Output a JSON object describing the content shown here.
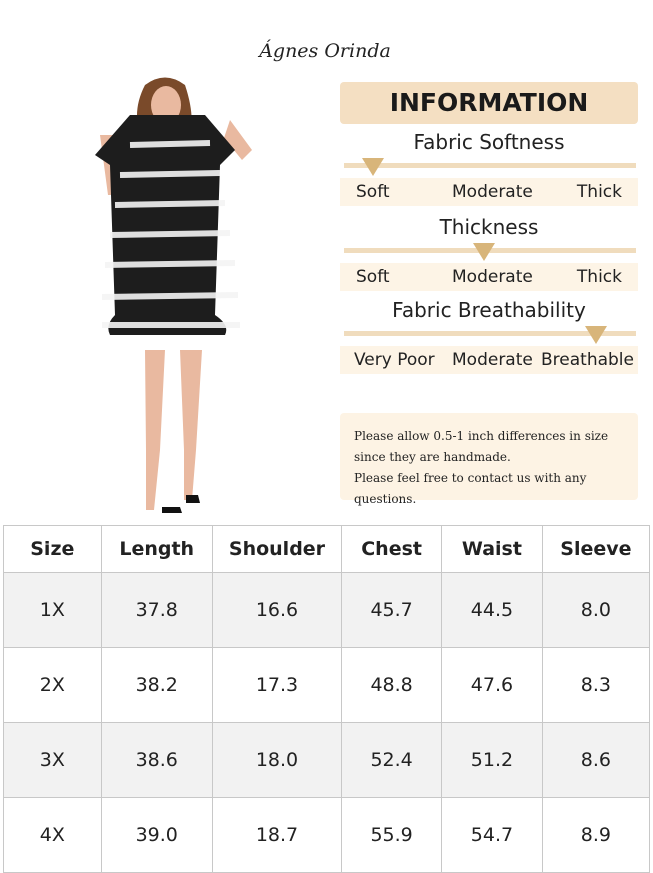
{
  "brand": "Ágnes Orinda",
  "info": {
    "title": "INFORMATION",
    "scales": [
      {
        "title": "Fabric Softness",
        "labels": [
          "Soft",
          "Moderate",
          "Thick"
        ]
      },
      {
        "title": "Thickness",
        "labels": [
          "Soft",
          "Moderate",
          "Thick"
        ]
      },
      {
        "title": "Fabric Breathability",
        "labels": [
          "Very Poor",
          "Moderate",
          "Breathable"
        ]
      }
    ],
    "note": [
      "Please allow 0.5-1 inch differences in size",
      "since they are handmade.",
      "Please feel free to contact us with any questions."
    ]
  },
  "table": {
    "header": [
      "Size",
      "Length",
      "Shoulder",
      "Chest",
      "Waist",
      "Sleeve"
    ],
    "rows": [
      [
        "1X",
        "37.8",
        "16.6",
        "45.7",
        "44.5",
        "8.0"
      ],
      [
        "2X",
        "38.2",
        "17.3",
        "48.8",
        "47.6",
        "8.3"
      ],
      [
        "3X",
        "38.6",
        "18.0",
        "52.4",
        "51.2",
        "8.6"
      ],
      [
        "4X",
        "39.0",
        "18.7",
        "55.9",
        "54.7",
        "8.9"
      ]
    ]
  }
}
